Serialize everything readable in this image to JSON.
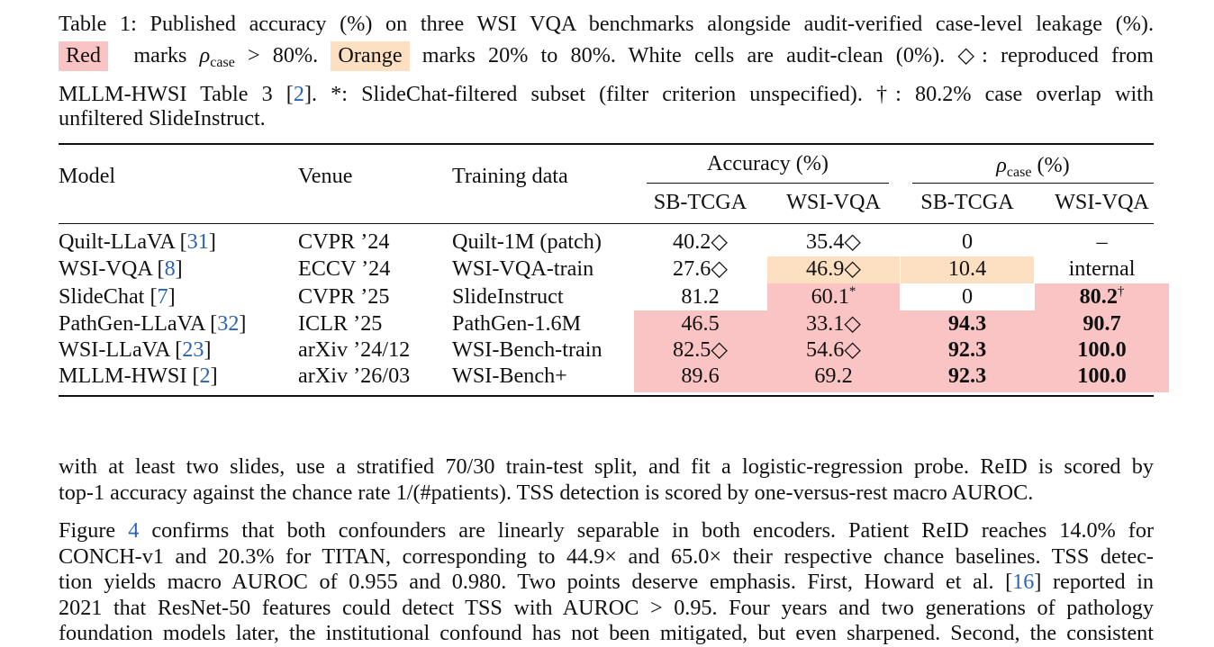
{
  "caption": {
    "label": "Table 1:",
    "line1": "Published accuracy (%) on three WSI VQA benchmarks alongside audit-verified case-level leakage (%).",
    "red_word": "Red",
    "red_text": "marks ρcase > 80%.",
    "orange_word": "Orange",
    "orange_text": "marks 20% to 80%.  White cells are audit-clean (0%).  ◇: reproduced from",
    "line3_a": "MLLM-HWSI Table 3 [",
    "line3_ref": "2",
    "line3_b": "].  *: SlideChat-filtered subset (filter criterion unspecified).  †: 80.2% case overlap with",
    "line4": "unfiltered SlideInstruct."
  },
  "table": {
    "headers": {
      "model": "Model",
      "venue": "Venue",
      "training": "Training data",
      "accuracy_group": "Accuracy (%)",
      "rho_group": "ρcase (%)",
      "sub": [
        "SB-TCGA",
        "WSI-VQA",
        "SB-TCGA",
        "WSI-VQA"
      ]
    },
    "rows": [
      {
        "model": "Quilt-LLaVA [",
        "ref": "31",
        "model_end": "]",
        "venue": "CVPR ’24",
        "training": "Quilt-1M (patch)",
        "acc_sb": "40.2◇",
        "acc_wsi": "35.4◇",
        "rho_sb": "0",
        "rho_wsi": "–"
      },
      {
        "model": "WSI-VQA [",
        "ref": "8",
        "model_end": "]",
        "venue": "ECCV ’24",
        "training": "WSI-VQA-train",
        "acc_sb": "27.6◇",
        "acc_wsi": "46.9◇",
        "rho_sb": "10.4",
        "rho_wsi": "internal"
      },
      {
        "model": "SlideChat [",
        "ref": "7",
        "model_end": "]",
        "venue": "CVPR ’25",
        "training": "SlideInstruct",
        "acc_sb": "81.2",
        "acc_wsi": "60.1*",
        "rho_sb": "0",
        "rho_wsi": "80.2†"
      },
      {
        "model": "PathGen-LLaVA [",
        "ref": "32",
        "model_end": "]",
        "venue": "ICLR ’25",
        "training": "PathGen-1.6M",
        "acc_sb": "46.5",
        "acc_wsi": "33.1◇",
        "rho_sb": "94.3",
        "rho_wsi": "90.7"
      },
      {
        "model": "WSI-LLaVA [",
        "ref": "23",
        "model_end": "]",
        "venue": "arXiv ’24/12",
        "training": "WSI-Bench-train",
        "acc_sb": "82.5◇",
        "acc_wsi": "54.6◇",
        "rho_sb": "92.3",
        "rho_wsi": "100.0"
      },
      {
        "model": "MLLM-HWSI [",
        "ref": "2",
        "model_end": "]",
        "venue": "arXiv ’26/03",
        "training": "WSI-Bench+",
        "acc_sb": "89.6",
        "acc_wsi": "69.2",
        "rho_sb": "92.3",
        "rho_wsi": "100.0"
      }
    ],
    "colors": {
      "red": "#fac4c4",
      "orange": "#fde0c2",
      "link": "#2a63b6"
    }
  },
  "body": {
    "p1_l1": "with at least two slides, use a stratified 70/30 train-test split, and fit a logistic-regression probe. ReID is scored by",
    "p1_l2": "top-1 accuracy against the chance rate 1/(#patients). TSS detection is scored by one-versus-rest macro AUROC.",
    "p2_l1a": "Figure ",
    "p2_ref_fig": "4",
    "p2_l1b": " confirms that both confounders are linearly separable in both encoders.  Patient ReID reaches 14.0% for",
    "p2_l2": "CONCH-v1 and 20.3% for TITAN, corresponding to 44.9× and 65.0× their respective chance baselines. TSS detec-",
    "p2_l3a": "tion yields macro AUROC of 0.955 and 0.980.  Two points deserve emphasis.  First, Howard et al. [",
    "p2_ref": "16",
    "p2_l3b": "] reported in",
    "p2_l4": "2021 that ResNet-50 features could detect TSS with AUROC > 0.95. Four years and two generations of pathology",
    "p2_l5": "foundation models later, the institutional confound has not been mitigated, but even sharpened. Second, the consistent"
  }
}
